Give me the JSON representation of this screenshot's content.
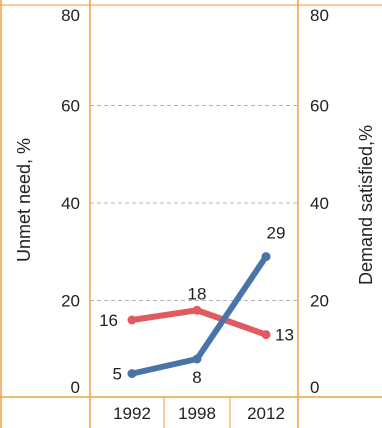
{
  "chart_data": {
    "type": "line",
    "categories": [
      "1992",
      "1998",
      "2012"
    ],
    "series": [
      {
        "values": [
          16,
          18,
          13
        ],
        "color": "#e05a5f"
      },
      {
        "values": [
          5,
          8,
          29
        ],
        "color": "#4a74a8"
      }
    ],
    "ylabel_left": "Unmet need, %",
    "ylabel_right": "Demand satisfied,%",
    "ylim": [
      0,
      80
    ],
    "yticks": [
      "0",
      "20",
      "40",
      "60",
      "80"
    ],
    "grid": true,
    "frame_color": "#f0a040",
    "grid_color": "#b5b5b5"
  }
}
